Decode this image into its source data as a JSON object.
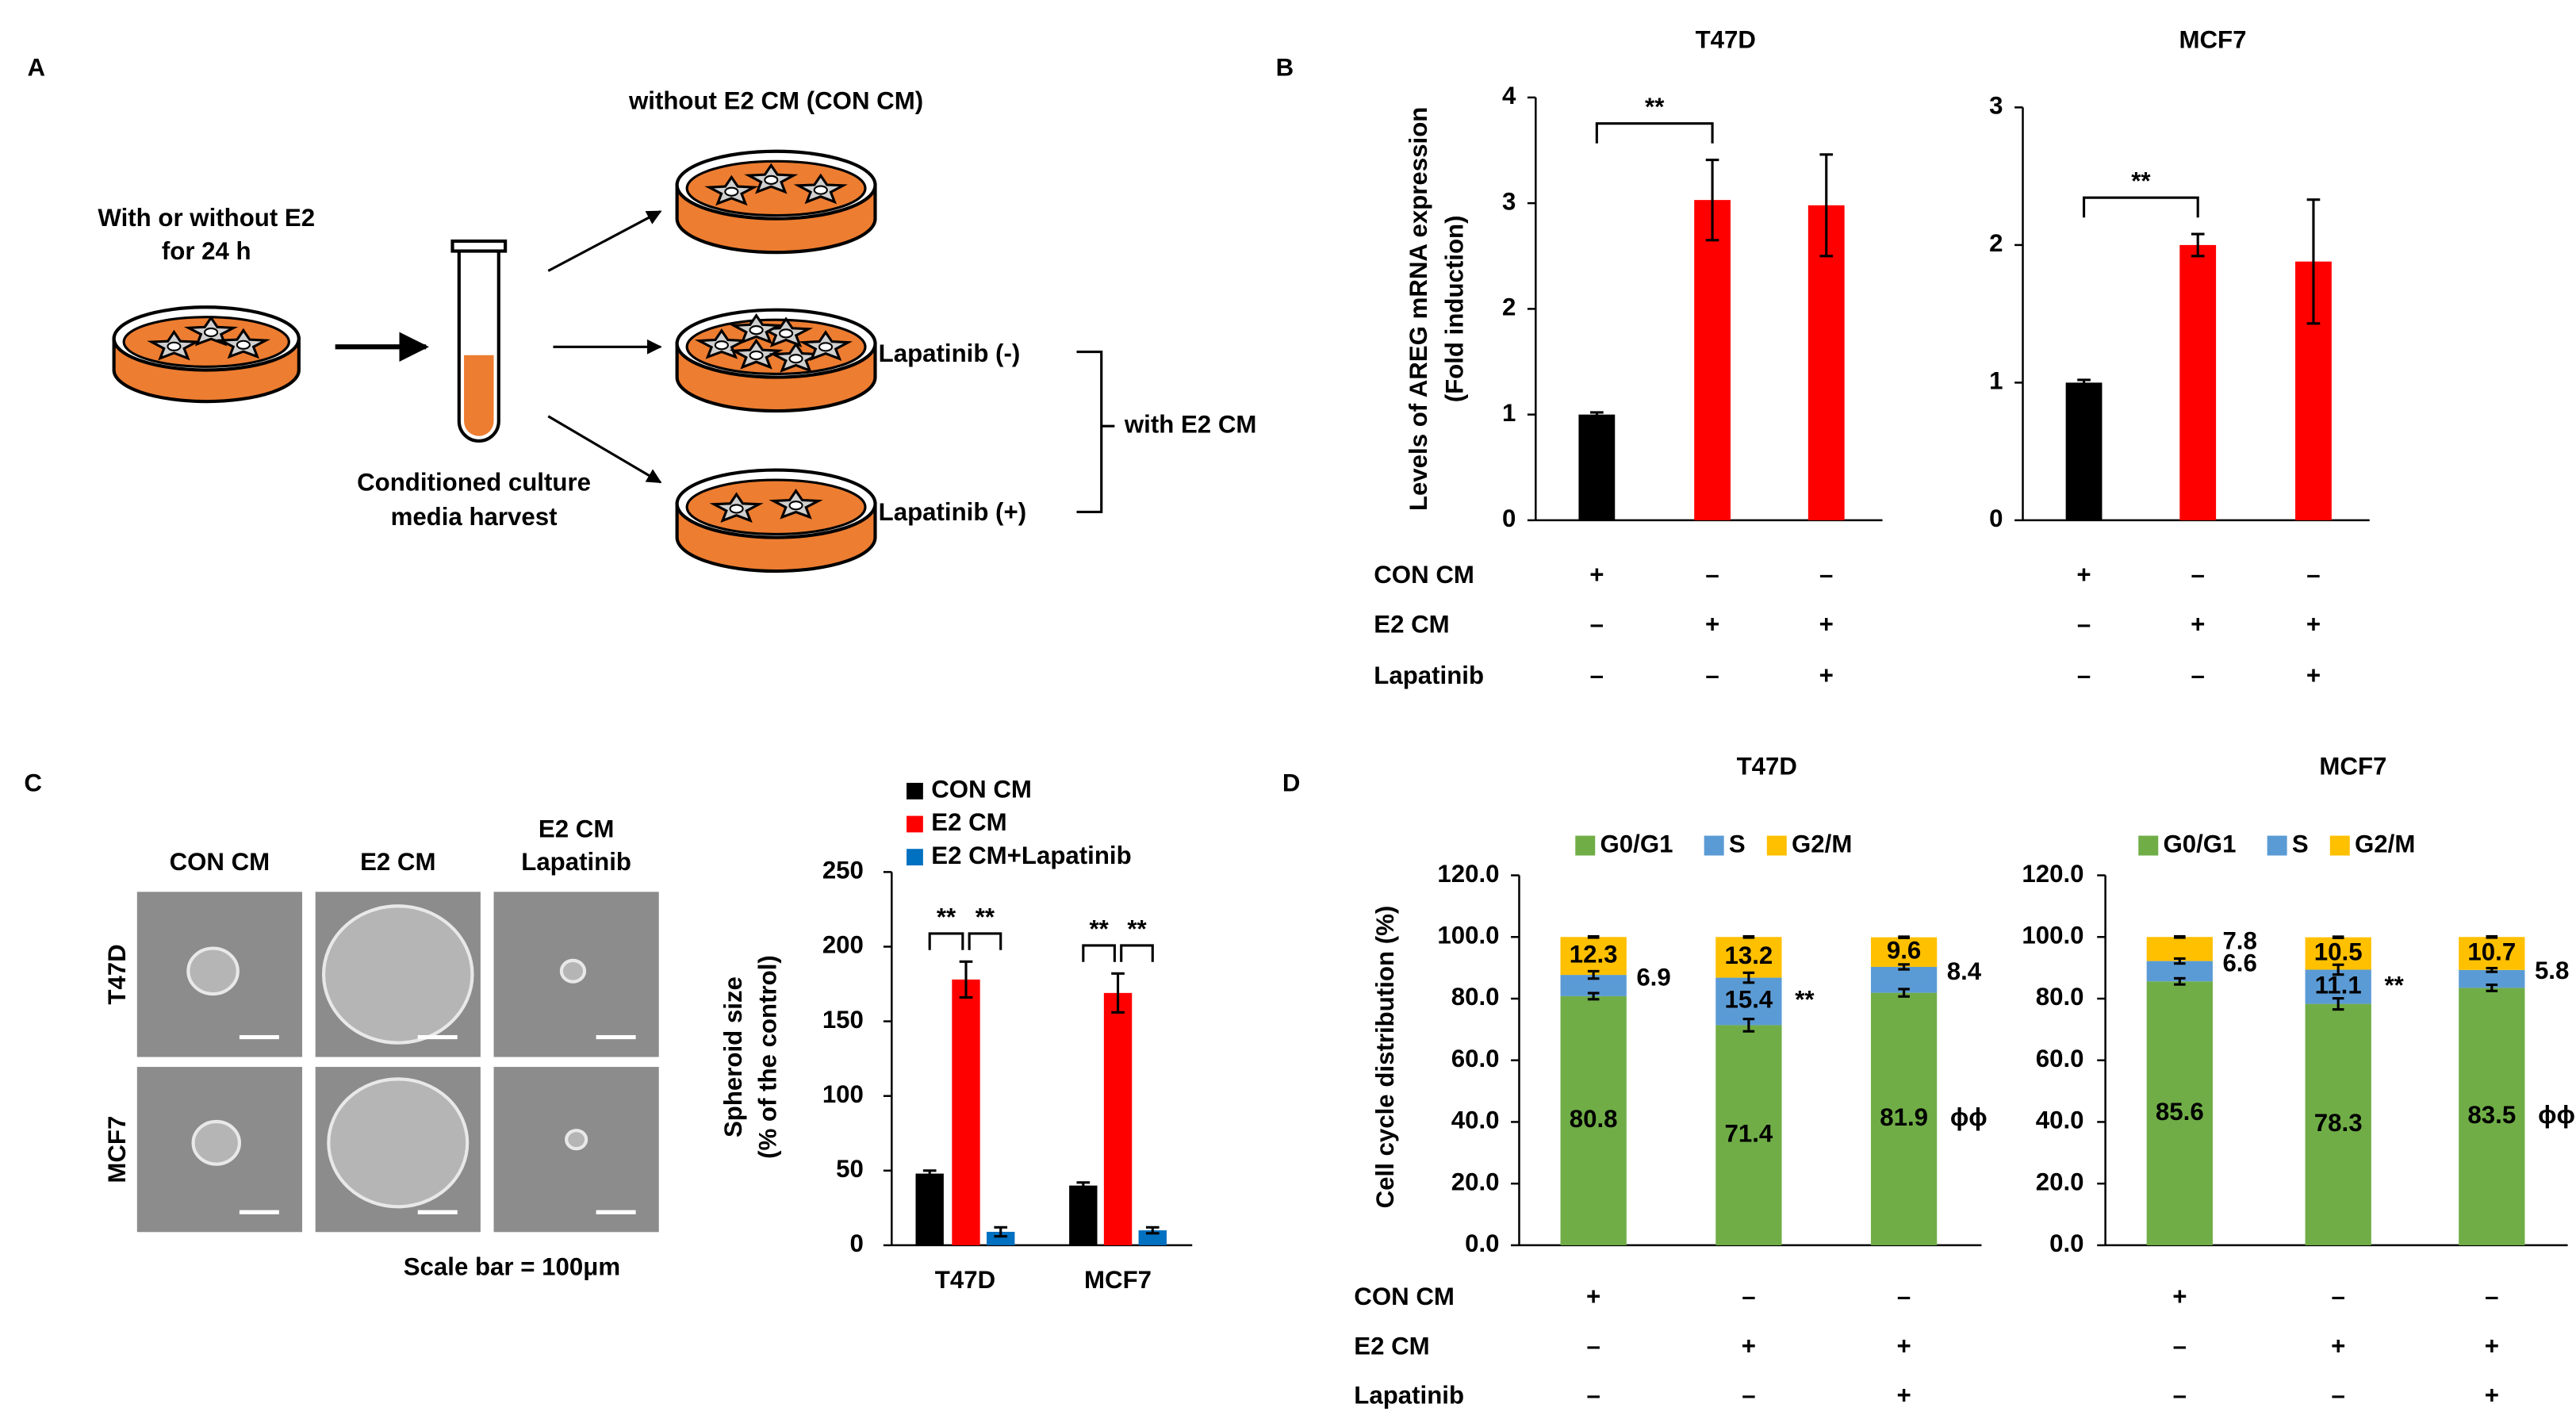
{
  "panel_labels": [
    "A",
    "B",
    "C",
    "D"
  ],
  "diagram": {
    "top_label": "without E2 CM (CON CM)",
    "start_label": [
      "With or without E2",
      "for 24 h"
    ],
    "tube_label": [
      "Conditioned culture",
      "media harvest"
    ],
    "dish_labels": [
      "Lapatinib (-)",
      "Lapatinib (+)"
    ],
    "bracket_label": "with E2 CM"
  },
  "images": {
    "columns": [
      [
        "CON CM"
      ],
      [
        "E2 CM"
      ],
      [
        "E2 CM",
        "Lapatinib"
      ]
    ],
    "rows": [
      "T47D",
      "MCF7"
    ],
    "scale_bar": "Scale bar = 100μm"
  },
  "condition_names_B": [
    "CON CM",
    "E2 CM",
    "Lapatinib"
  ],
  "condition_names_D": [
    "CON CM",
    "E2 CM",
    "Lapatinib"
  ],
  "chart_data": [
    {
      "type": "bar",
      "title": "T47D",
      "ylabel": [
        "Levels of AREG mRNA expression",
        "(Fold induction)"
      ],
      "values": [
        1.0,
        3.03,
        2.98
      ],
      "errors": [
        0.02,
        0.38,
        0.48
      ],
      "colors": [
        "#000000",
        "#ff0000",
        "#ff0000"
      ],
      "ylim": [
        0,
        4
      ],
      "yticks": [
        0,
        1,
        2,
        3,
        4
      ],
      "significance": [
        {
          "label": "**",
          "between": [
            0,
            1
          ]
        }
      ],
      "conditions": [
        [
          "+",
          "–",
          "–"
        ],
        [
          "–",
          "+",
          "+"
        ],
        [
          "–",
          "–",
          "+"
        ]
      ]
    },
    {
      "type": "bar",
      "title": "MCF7",
      "values": [
        1.0,
        2.0,
        1.88
      ],
      "errors": [
        0.02,
        0.08,
        0.45
      ],
      "colors": [
        "#000000",
        "#ff0000",
        "#ff0000"
      ],
      "ylim": [
        0,
        3
      ],
      "yticks": [
        0,
        1,
        2,
        3
      ],
      "significance": [
        {
          "label": "**",
          "between": [
            0,
            1
          ]
        }
      ],
      "conditions": [
        [
          "+",
          "–",
          "–"
        ],
        [
          "–",
          "+",
          "+"
        ],
        [
          "–",
          "–",
          "+"
        ]
      ]
    },
    {
      "type": "grouped_bar",
      "ylabel": [
        "Spheroid size",
        "(% of the control)"
      ],
      "categories": [
        "T47D",
        "MCF7"
      ],
      "series": [
        {
          "name": "CON CM",
          "color": "#000000",
          "values": [
            48,
            40
          ],
          "errors": [
            2,
            2
          ]
        },
        {
          "name": "E2 CM",
          "color": "#ff0000",
          "values": [
            178,
            169
          ],
          "errors": [
            12,
            13
          ]
        },
        {
          "name": "E2 CM+Lapatinib",
          "color": "#0070c0",
          "values": [
            9,
            10
          ],
          "errors": [
            3,
            2
          ]
        }
      ],
      "ylim": [
        0,
        250
      ],
      "yticks": [
        0,
        50,
        100,
        150,
        200,
        250
      ],
      "legend": "top-left",
      "significance": [
        {
          "label": "**",
          "group": 0,
          "between": [
            0,
            1
          ]
        },
        {
          "label": "**",
          "group": 0,
          "between": [
            1,
            2
          ]
        },
        {
          "label": "**",
          "group": 1,
          "between": [
            0,
            1
          ]
        },
        {
          "label": "**",
          "group": 1,
          "between": [
            1,
            2
          ]
        }
      ]
    },
    {
      "type": "stacked_bar",
      "title": "T47D",
      "ylabel": "Cell cycle distribution (%)",
      "series": [
        {
          "name": "G0/G1",
          "color": "#70ad47",
          "values": [
            80.8,
            71.4,
            81.9
          ],
          "errors": [
            1.0,
            2.0,
            1.2
          ]
        },
        {
          "name": "S",
          "color": "#5b9bd5",
          "values": [
            6.9,
            15.4,
            8.4
          ],
          "errors": [
            1.2,
            1.6,
            0.8
          ]
        },
        {
          "name": "G2/M",
          "color": "#ffc000",
          "values": [
            12.3,
            13.2,
            9.6
          ],
          "errors": [
            0.2,
            0.2,
            0.2
          ]
        }
      ],
      "ylim": [
        0,
        120
      ],
      "yticks": [
        {
          "value": 0,
          "label": "0.0"
        },
        {
          "value": 20,
          "label": "20.0"
        },
        {
          "value": 40,
          "label": "40.0"
        },
        {
          "value": 60,
          "label": "60.0"
        },
        {
          "value": 80,
          "label": "80.0"
        },
        {
          "value": 100,
          "label": "100.0"
        },
        {
          "value": 120,
          "label": "120.0"
        }
      ],
      "legend": "top",
      "markers": [
        {
          "label": "**",
          "bar": 1,
          "series": 1
        },
        {
          "label": "ϕϕ",
          "bar": 2,
          "series": 0
        }
      ],
      "conditions": [
        [
          "+",
          "–",
          "–"
        ],
        [
          "–",
          "+",
          "+"
        ],
        [
          "–",
          "–",
          "+"
        ]
      ]
    },
    {
      "type": "stacked_bar",
      "title": "MCF7",
      "series": [
        {
          "name": "G0/G1",
          "color": "#70ad47",
          "values": [
            85.6,
            78.3,
            83.5
          ],
          "errors": [
            1.0,
            1.8,
            1.0
          ]
        },
        {
          "name": "S",
          "color": "#5b9bd5",
          "values": [
            6.6,
            11.1,
            5.8
          ],
          "errors": [
            0.8,
            1.6,
            0.6
          ]
        },
        {
          "name": "G2/M",
          "color": "#ffc000",
          "values": [
            7.8,
            10.5,
            10.7
          ],
          "errors": [
            0.2,
            0.2,
            0.2
          ]
        }
      ],
      "ylim": [
        0,
        120
      ],
      "yticks": [
        {
          "value": 0,
          "label": "0.0"
        },
        {
          "value": 20,
          "label": "20.0"
        },
        {
          "value": 40,
          "label": "40.0"
        },
        {
          "value": 60,
          "label": "60.0"
        },
        {
          "value": 80,
          "label": "80.0"
        },
        {
          "value": 100,
          "label": "100.0"
        },
        {
          "value": 120,
          "label": "120.0"
        }
      ],
      "legend": "top",
      "markers": [
        {
          "label": "**",
          "bar": 1,
          "series": 1
        },
        {
          "label": "ϕϕ",
          "bar": 2,
          "series": 0
        }
      ],
      "conditions": [
        [
          "+",
          "–",
          "–"
        ],
        [
          "–",
          "+",
          "+"
        ],
        [
          "–",
          "–",
          "+"
        ]
      ]
    }
  ]
}
